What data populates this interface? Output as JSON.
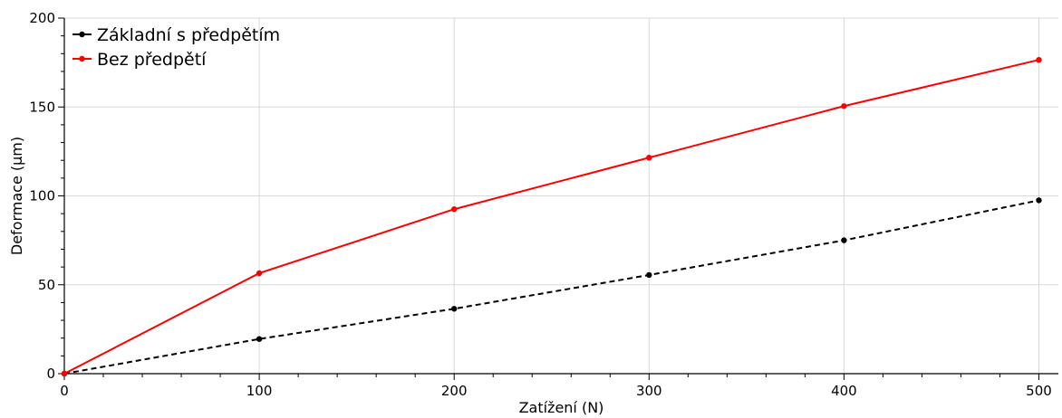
{
  "chart_data": {
    "type": "line",
    "title": "",
    "xlabel": "Zatížení (N)",
    "ylabel": "Deformace (µm)",
    "xlim": [
      0,
      510
    ],
    "ylim": [
      0,
      200
    ],
    "xticks": [
      0,
      100,
      200,
      300,
      400,
      500
    ],
    "yticks": [
      0,
      50,
      100,
      150,
      200
    ],
    "grid": true,
    "legend_position": "top-left",
    "series": [
      {
        "name": "Základní s předpětím",
        "color": "#000000",
        "line_style": "dashed",
        "x": [
          0,
          100,
          200,
          300,
          400,
          500
        ],
        "y": [
          0,
          19.5,
          36.5,
          55.5,
          75,
          97.5
        ]
      },
      {
        "name": "Bez předpětí",
        "color": "#ff0000",
        "line_style": "solid",
        "x": [
          0,
          100,
          200,
          300,
          400,
          500
        ],
        "y": [
          0,
          56.5,
          92.5,
          121.5,
          150.5,
          176.5
        ]
      }
    ]
  }
}
